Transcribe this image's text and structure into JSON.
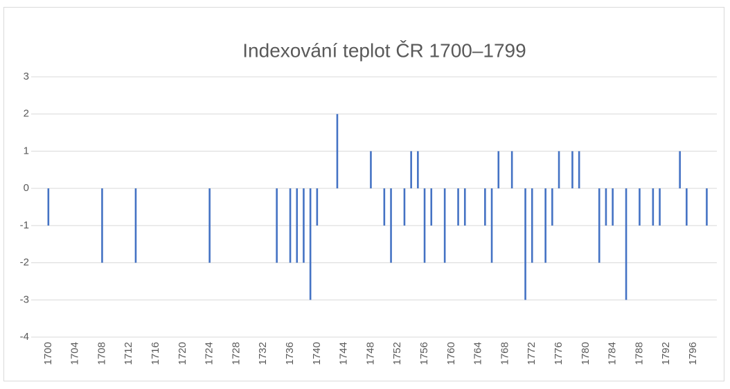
{
  "chart_data": {
    "type": "bar",
    "title": "Indexování teplot ČR 1700–1799",
    "categories": [
      "1700",
      null,
      null,
      null,
      "1704",
      null,
      null,
      null,
      "1708",
      null,
      null,
      null,
      "1712",
      null,
      null,
      null,
      "1716",
      null,
      null,
      null,
      "1720",
      null,
      null,
      null,
      "1724",
      null,
      null,
      null,
      "1728",
      null,
      null,
      null,
      "1732",
      null,
      null,
      null,
      "1736",
      null,
      null,
      null,
      "1740",
      null,
      null,
      null,
      "1744",
      null,
      null,
      null,
      "1748",
      null,
      null,
      null,
      "1752",
      null,
      null,
      null,
      "1756",
      null,
      null,
      null,
      "1760",
      null,
      null,
      null,
      "1764",
      null,
      null,
      null,
      "1768",
      null,
      null,
      null,
      "1772",
      null,
      null,
      null,
      "1776",
      null,
      null,
      null,
      "1780",
      null,
      null,
      null,
      "1784",
      null,
      null,
      null,
      "1788",
      null,
      null,
      null,
      "1792",
      null,
      null,
      null,
      "1796",
      null,
      null,
      null
    ],
    "values": [
      -1,
      0,
      0,
      0,
      0,
      0,
      0,
      0,
      -2,
      0,
      0,
      0,
      0,
      -2,
      0,
      0,
      0,
      0,
      0,
      0,
      0,
      0,
      0,
      0,
      -2,
      0,
      0,
      0,
      0,
      0,
      0,
      0,
      0,
      0,
      -2,
      0,
      -2,
      -2,
      -2,
      -3,
      -1,
      0,
      0,
      2,
      0,
      0,
      0,
      0,
      1,
      0,
      -1,
      -2,
      0,
      -1,
      1,
      1,
      -2,
      -1,
      0,
      -2,
      0,
      -1,
      -1,
      0,
      0,
      -1,
      -2,
      1,
      0,
      1,
      0,
      -3,
      -2,
      0,
      -2,
      -1,
      1,
      0,
      1,
      1,
      0,
      0,
      -2,
      -1,
      -1,
      0,
      -3,
      0,
      -1,
      0,
      -1,
      -1,
      0,
      0,
      1,
      -1,
      0,
      0,
      -1,
      0
    ],
    "color": "#4472c4",
    "ylim": [
      -4,
      3
    ],
    "yticks": [
      -4,
      -3,
      -2,
      -1,
      0,
      1,
      2,
      3
    ],
    "grid": true
  }
}
